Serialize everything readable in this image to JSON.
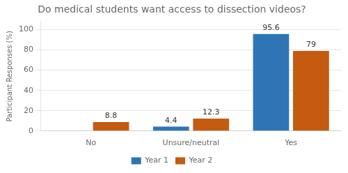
{
  "chart_data": {
    "type": "bar",
    "title": "Do medical students want access to dissection videos?",
    "ylabel": "Participant Responses (%)",
    "categories": [
      "No",
      "Unsure/neutral",
      "Yes"
    ],
    "series": [
      {
        "name": "Year 1",
        "color": "#2E75B6",
        "values": [
          0,
          4.4,
          95.6
        ],
        "value_labels": [
          null,
          "4.4",
          "95.6"
        ]
      },
      {
        "name": "Year 2",
        "color": "#C55A11",
        "values": [
          8.8,
          12.3,
          79
        ]
      }
    ],
    "ylim": [
      0,
      108
    ],
    "yticks": [
      0,
      20,
      40,
      60,
      80,
      100
    ],
    "grid": true,
    "legend": "bottom",
    "data_labels": true
  }
}
